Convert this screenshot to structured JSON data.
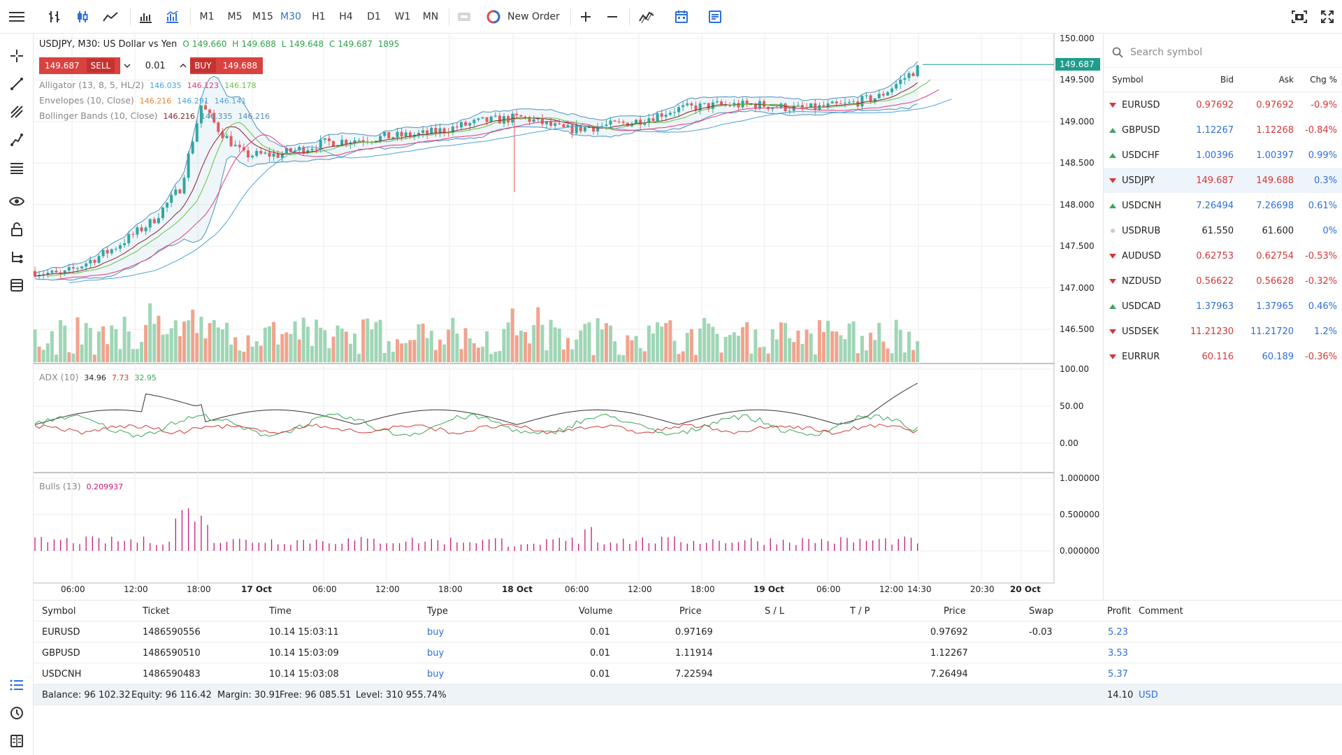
{
  "toolbar": {
    "timeframes": [
      "M1",
      "M5",
      "M15",
      "M30",
      "H1",
      "H4",
      "D1",
      "W1",
      "MN"
    ],
    "active_timeframe": "M30",
    "new_order_label": "New Order"
  },
  "chart": {
    "title": "USDJPY, M30: US Dollar vs Yen",
    "ohlc": {
      "o_label": "O",
      "o": "149.660",
      "h_label": "H",
      "h": "149.688",
      "l_label": "L",
      "l": "149.648",
      "c_label": "C",
      "c": "149.687",
      "v": "1895"
    },
    "trade_panel": {
      "sell_price": "149.687",
      "sell_label": "SELL",
      "volume": "0.01",
      "buy_label": "BUY",
      "buy_price": "149.688"
    },
    "indicators": [
      {
        "name": "Alligator (13, 8, 5, HL/2)",
        "v1": "146.035",
        "v2": "146.123",
        "v3": "146.178"
      },
      {
        "name": "Envelopes (10, Close)",
        "v1": "146.216",
        "v2": "146.291",
        "v3": "146.141"
      },
      {
        "name": "Bollinger Bands (10, Close)",
        "v1": "146.216",
        "v2": "146.335",
        "v3": "146.216"
      }
    ],
    "current_price": "149.687",
    "price_axis": [
      "150.000",
      "149.500",
      "149.000",
      "148.500",
      "148.000",
      "147.500",
      "147.000",
      "146.500"
    ],
    "adx": {
      "name": "ADX (10)",
      "v1": "34.96",
      "v2": "7.73",
      "v3": "32.95",
      "axis": [
        "100.00",
        "50.00",
        "0.00"
      ]
    },
    "bulls": {
      "name": "Bulls (13)",
      "v1": "0.209937",
      "axis": [
        "1.000000",
        "0.500000",
        "0.000000"
      ]
    },
    "time_axis": [
      "06:00",
      "12:00",
      "18:00",
      "17 Oct",
      "06:00",
      "12:00",
      "18:00",
      "18 Oct",
      "06:00",
      "12:00",
      "18:00",
      "19 Oct",
      "06:00",
      "12:00",
      "14:30",
      "20:30",
      "20 Oct"
    ],
    "colors": {
      "up": "#26a69a",
      "down": "#ef5350",
      "bb": "#4d8fb8",
      "alligator_jaw": "#4aa3df",
      "alligator_teeth": "#e03a7a",
      "alligator_lips": "#6abf40"
    }
  },
  "watch": {
    "search_placeholder": "Search symbol",
    "headers": {
      "symbol": "Symbol",
      "bid": "Bid",
      "ask": "Ask",
      "chg": "Chg %"
    },
    "rows": [
      {
        "symbol": "EURUSD",
        "dir": "down",
        "bid": "0.97692",
        "ask": "0.97692",
        "chg": "-0.9%",
        "bid_color": "red",
        "ask_color": "red",
        "chg_color": "red"
      },
      {
        "symbol": "GBPUSD",
        "dir": "up",
        "bid": "1.12267",
        "ask": "1.12268",
        "chg": "-0.84%",
        "bid_color": "blue",
        "ask_color": "red",
        "chg_color": "red"
      },
      {
        "symbol": "USDCHF",
        "dir": "up",
        "bid": "1.00396",
        "ask": "1.00397",
        "chg": "0.99%",
        "bid_color": "blue",
        "ask_color": "blue",
        "chg_color": "blue"
      },
      {
        "symbol": "USDJPY",
        "dir": "down",
        "bid": "149.687",
        "ask": "149.688",
        "chg": "0.3%",
        "bid_color": "red",
        "ask_color": "red",
        "chg_color": "blue",
        "selected": true
      },
      {
        "symbol": "USDCNH",
        "dir": "up",
        "bid": "7.26494",
        "ask": "7.26698",
        "chg": "0.61%",
        "bid_color": "blue",
        "ask_color": "blue",
        "chg_color": "blue"
      },
      {
        "symbol": "USDRUB",
        "dir": "flat",
        "bid": "61.550",
        "ask": "61.600",
        "chg": "0%",
        "bid_color": "black",
        "ask_color": "black",
        "chg_color": "blue"
      },
      {
        "symbol": "AUDUSD",
        "dir": "down",
        "bid": "0.62753",
        "ask": "0.62754",
        "chg": "-0.53%",
        "bid_color": "red",
        "ask_color": "red",
        "chg_color": "red"
      },
      {
        "symbol": "NZDUSD",
        "dir": "down",
        "bid": "0.56622",
        "ask": "0.56628",
        "chg": "-0.32%",
        "bid_color": "red",
        "ask_color": "red",
        "chg_color": "red"
      },
      {
        "symbol": "USDCAD",
        "dir": "up",
        "bid": "1.37963",
        "ask": "1.37965",
        "chg": "0.46%",
        "bid_color": "blue",
        "ask_color": "blue",
        "chg_color": "blue"
      },
      {
        "symbol": "USDSEK",
        "dir": "down",
        "bid": "11.21230",
        "ask": "11.21720",
        "chg": "1.2%",
        "bid_color": "red",
        "ask_color": "blue",
        "chg_color": "blue"
      },
      {
        "symbol": "EURRUR",
        "dir": "down",
        "bid": "60.116",
        "ask": "60.189",
        "chg": "-0.36%",
        "bid_color": "red",
        "ask_color": "blue",
        "chg_color": "red"
      }
    ]
  },
  "trades": {
    "headers": {
      "symbol": "Symbol",
      "ticket": "Ticket",
      "time": "Time",
      "type": "Type",
      "volume": "Volume",
      "price": "Price",
      "sl": "S / L",
      "tp": "T / P",
      "price2": "Price",
      "swap": "Swap",
      "profit": "Profit",
      "comment": "Comment"
    },
    "rows": [
      {
        "symbol": "EURUSD",
        "ticket": "1486590556",
        "time": "10.14 15:03:11",
        "type": "buy",
        "volume": "0.01",
        "price": "0.97169",
        "price2": "0.97692",
        "swap": "-0.03",
        "profit": "5.23"
      },
      {
        "symbol": "GBPUSD",
        "ticket": "1486590510",
        "time": "10.14 15:03:09",
        "type": "buy",
        "volume": "0.01",
        "price": "1.11914",
        "price2": "1.12267",
        "swap": "",
        "profit": "3.53"
      },
      {
        "symbol": "USDCNH",
        "ticket": "1486590483",
        "time": "10.14 15:03:08",
        "type": "buy",
        "volume": "0.01",
        "price": "7.22594",
        "price2": "7.26494",
        "swap": "",
        "profit": "5.37"
      }
    ],
    "summary": {
      "balance": "Balance: 96 102.32",
      "equity": "Equity: 96 116.42",
      "margin": "Margin: 30.91",
      "free": "Free: 96 085.51",
      "level": "Level: 310 955.74%",
      "profit": "14.10",
      "currency": "USD"
    }
  }
}
